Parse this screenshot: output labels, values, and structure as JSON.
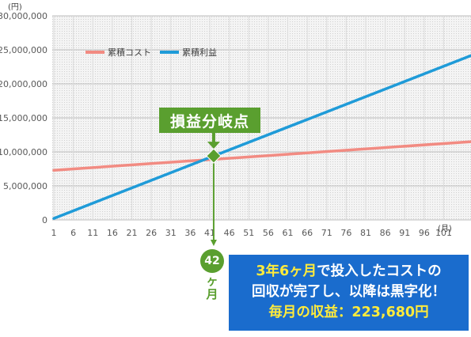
{
  "chart_data": {
    "type": "line",
    "ylabel": "(円)",
    "xlabel": "(月)",
    "ylim": [
      0,
      30000000
    ],
    "xlim": [
      1,
      108
    ],
    "yticks": [
      0,
      5000000,
      10000000,
      15000000,
      20000000,
      25000000,
      30000000
    ],
    "ytick_labels": [
      "0",
      "5,000,000",
      "10,000,000",
      "15,000,000",
      "20,000,000",
      "25,000,000",
      "30,000,000"
    ],
    "xticks": [
      1,
      6,
      11,
      16,
      21,
      26,
      31,
      36,
      41,
      46,
      51,
      56,
      61,
      66,
      71,
      76,
      81,
      86,
      91,
      96,
      101
    ],
    "grid": true,
    "legend": "top-left",
    "series": [
      {
        "name": "累積コスト",
        "color": "#f28b82",
        "x": [
          1,
          108
        ],
        "y": [
          7300000,
          11500000
        ]
      },
      {
        "name": "累積利益",
        "color": "#1f9bd8",
        "x": [
          1,
          108
        ],
        "y": [
          223680,
          24157440
        ]
      }
    ],
    "annotations": {
      "break_even": {
        "label": "損益分岐点",
        "x": 42,
        "y": 9400000,
        "color": "#5a9f2f"
      }
    }
  },
  "badge": {
    "month": "42",
    "unit": "ヶ月"
  },
  "summary": {
    "duration": "3年6ヶ月",
    "line1_rest": "で投入したコストの",
    "line2": "回収が完了し、以降は黒字化！",
    "line3": "毎月の収益：223,680円"
  }
}
